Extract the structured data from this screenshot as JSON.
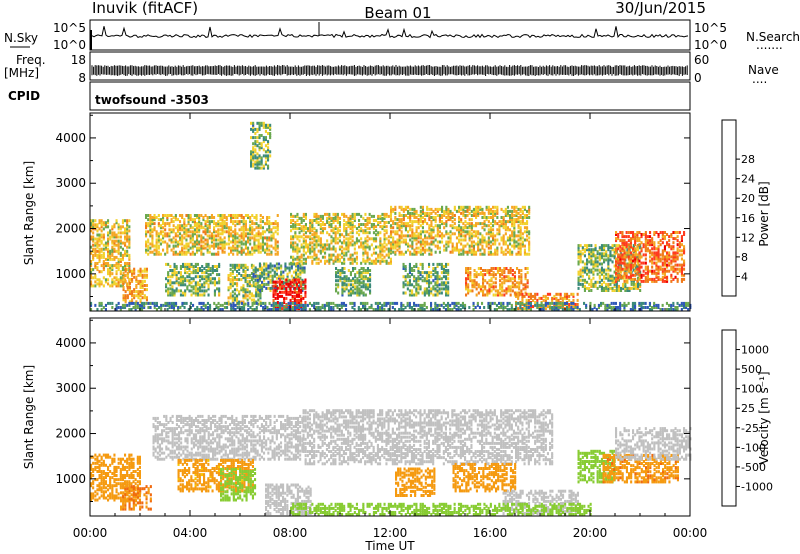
{
  "header": {
    "station": "Inuvik (fitACF)",
    "beam": "Beam 01",
    "date": "30/Jun/2015"
  },
  "side_labels": {
    "nsky": "N.Sky",
    "nsearch": "N.Search",
    "nsearch_dots": ".......",
    "freq_line1": "Freq.",
    "freq_line2": "[MHz]",
    "nave": "Nave",
    "nave_dots": "....",
    "cpid": "CPID"
  },
  "strip_ticks": {
    "nsky_left": [
      "10^5",
      "10^0"
    ],
    "nsearch_right": [
      "10^5",
      "10^0"
    ],
    "freq_left": [
      "18",
      "8"
    ],
    "nave_right": [
      "60",
      "0"
    ]
  },
  "cpid_text": "twofsound -3503",
  "time_axis": {
    "label": "Time UT",
    "ticks": [
      "00:00",
      "04:00",
      "08:00",
      "12:00",
      "16:00",
      "20:00",
      "00:00"
    ],
    "hours": [
      0,
      4,
      8,
      12,
      16,
      20,
      24
    ],
    "range_hours": [
      0,
      24
    ]
  },
  "power_colorbar": {
    "label": "Power [dB]",
    "ticks": [
      "4",
      "8",
      "12",
      "16",
      "20",
      "24",
      "28"
    ],
    "colors": [
      "#0000ff",
      "#2f58b8",
      "#3b8a7a",
      "#6aa84f",
      "#f2d22e",
      "#f5a623",
      "#f07a1a",
      "#ff3b1f",
      "#ee0000"
    ]
  },
  "velocity_colorbar": {
    "label": "Velocity [m s⁻¹]",
    "ticks": [
      "1000",
      "500",
      "100",
      "25",
      "-25",
      "-100",
      "-500",
      "-1000"
    ],
    "colors": [
      "#2233cc",
      "#2e6f8a",
      "#3b8f47",
      "#88cc33",
      "#c0c0c0",
      "#f7c400",
      "#f59a10",
      "#f06a10",
      "#ee0000"
    ]
  },
  "chart_data": [
    {
      "type": "heatmap",
      "panel": "power",
      "ylabel": "Slant Range [km]",
      "xlabel": "Time UT",
      "x_range": [
        0,
        24
      ],
      "ylim": [
        180,
        4550
      ],
      "yticks": [
        1000,
        2000,
        3000,
        4000
      ],
      "units": "dB",
      "regions": [
        {
          "t": [
            0.0,
            1.6
          ],
          "r": [
            700,
            2150
          ],
          "v": 17
        },
        {
          "t": [
            1.3,
            2.3
          ],
          "r": [
            350,
            1100
          ],
          "v": 20
        },
        {
          "t": [
            2.2,
            7.5
          ],
          "r": [
            1400,
            2300
          ],
          "v": 17
        },
        {
          "t": [
            3.0,
            5.2
          ],
          "r": [
            500,
            1200
          ],
          "v": 13
        },
        {
          "t": [
            5.5,
            6.8
          ],
          "r": [
            300,
            1200
          ],
          "v": 14
        },
        {
          "t": [
            6.5,
            8.6
          ],
          "r": [
            600,
            1200
          ],
          "v": 11
        },
        {
          "t": [
            7.3,
            8.6
          ],
          "r": [
            200,
            850
          ],
          "v": 29
        },
        {
          "t": [
            8.0,
            12.0
          ],
          "r": [
            1200,
            2300
          ],
          "v": 16
        },
        {
          "t": [
            9.8,
            11.2
          ],
          "r": [
            500,
            1100
          ],
          "v": 12
        },
        {
          "t": [
            12.0,
            17.6
          ],
          "r": [
            1400,
            2450
          ],
          "v": 17
        },
        {
          "t": [
            12.5,
            14.3
          ],
          "r": [
            500,
            1200
          ],
          "v": 12
        },
        {
          "t": [
            15.0,
            17.5
          ],
          "r": [
            500,
            1100
          ],
          "v": 21
        },
        {
          "t": [
            17.0,
            19.5
          ],
          "r": [
            200,
            550
          ],
          "v": 22
        },
        {
          "t": [
            19.5,
            22.0
          ],
          "r": [
            600,
            1600
          ],
          "v": 13
        },
        {
          "t": [
            21.0,
            23.8
          ],
          "r": [
            800,
            1900
          ],
          "v": 24
        },
        {
          "t": [
            6.4,
            7.2
          ],
          "r": [
            3300,
            4300
          ],
          "v": 12
        },
        {
          "t": [
            0.0,
            24.0
          ],
          "r": [
            180,
            320
          ],
          "v": 9
        }
      ]
    },
    {
      "type": "heatmap",
      "panel": "velocity",
      "ylabel": "Slant Range [km]",
      "xlabel": "Time UT",
      "x_range": [
        0,
        24
      ],
      "ylim": [
        180,
        4550
      ],
      "yticks": [
        1000,
        2000,
        3000,
        4000
      ],
      "units": "m s-1",
      "regions": [
        {
          "t": [
            0.0,
            2.0
          ],
          "r": [
            500,
            1500
          ],
          "v": -250
        },
        {
          "t": [
            1.2,
            2.4
          ],
          "r": [
            300,
            800
          ],
          "v": -500
        },
        {
          "t": [
            2.5,
            8.5
          ],
          "r": [
            1400,
            2350
          ],
          "v": 0
        },
        {
          "t": [
            3.5,
            6.5
          ],
          "r": [
            700,
            1400
          ],
          "v": -150
        },
        {
          "t": [
            5.2,
            6.6
          ],
          "r": [
            500,
            1200
          ],
          "v": 60
        },
        {
          "t": [
            7.0,
            8.8
          ],
          "r": [
            200,
            850
          ],
          "v": 0
        },
        {
          "t": [
            8.5,
            18.5
          ],
          "r": [
            1300,
            2500
          ],
          "v": 0
        },
        {
          "t": [
            12.2,
            13.8
          ],
          "r": [
            600,
            1200
          ],
          "v": -250
        },
        {
          "t": [
            14.5,
            17.0
          ],
          "r": [
            700,
            1300
          ],
          "v": -300
        },
        {
          "t": [
            16.5,
            19.5
          ],
          "r": [
            200,
            700
          ],
          "v": 0
        },
        {
          "t": [
            19.5,
            21.0
          ],
          "r": [
            900,
            1600
          ],
          "v": 60
        },
        {
          "t": [
            20.5,
            23.5
          ],
          "r": [
            900,
            1500
          ],
          "v": -400
        },
        {
          "t": [
            21.0,
            24.0
          ],
          "r": [
            1400,
            2100
          ],
          "v": 0
        },
        {
          "t": [
            8.0,
            20.0
          ],
          "r": [
            180,
            420
          ],
          "v": 60
        }
      ]
    }
  ]
}
